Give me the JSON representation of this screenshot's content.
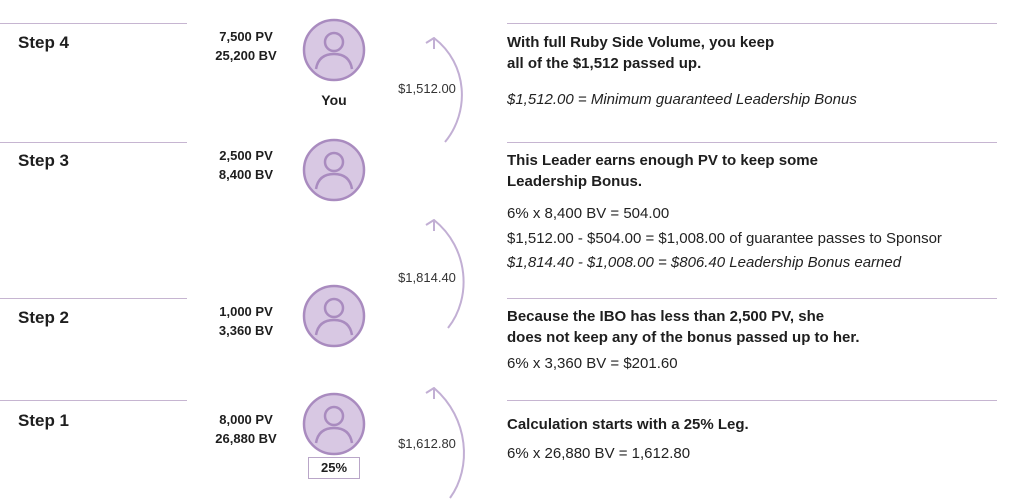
{
  "colors": {
    "accent": "#a98bbf",
    "rule": "#c6b5d1",
    "text": "#1e1e1e"
  },
  "icons": {
    "avatar": "person-circle-icon",
    "arrow": "curved-up-arrow-icon"
  },
  "steps": [
    {
      "label": "Step 4",
      "pv": "7,500 PV",
      "bv": "25,200 BV",
      "avatar_label": "You",
      "heading": [
        "With full Ruby Side Volume, you keep",
        "all of the $1,512 passed up."
      ],
      "calc": [
        "$1,512.00 = Minimum guaranteed Leadership Bonus"
      ]
    },
    {
      "label": "Step 3",
      "pv": "2,500 PV",
      "bv": "8,400 BV",
      "heading": [
        "This Leader earns enough PV to keep some",
        "Leadership Bonus."
      ],
      "calc": [
        "6% x 8,400 BV = 504.00",
        "$1,512.00 - $504.00 = $1,008.00 of guarantee passes to Sponsor",
        "$1,814.40 - $1,008.00 = $806.40 Leadership Bonus earned"
      ]
    },
    {
      "label": "Step 2",
      "pv": "1,000 PV",
      "bv": "3,360 BV",
      "heading": [
        "Because the IBO has less than 2,500 PV, she",
        "does not keep any of the bonus passed up to her."
      ],
      "calc": [
        "6% x 3,360 BV = $201.60"
      ]
    },
    {
      "label": "Step 1",
      "pv": "8,000 PV",
      "bv": "26,880 BV",
      "leg_percent": "25%",
      "heading": [
        "Calculation starts with a 25% Leg."
      ],
      "calc": [
        "6% x 26,880 BV = 1,612.80"
      ]
    }
  ],
  "transfers": [
    "$1,512.00",
    "$1,814.40",
    "$1,612.80"
  ]
}
